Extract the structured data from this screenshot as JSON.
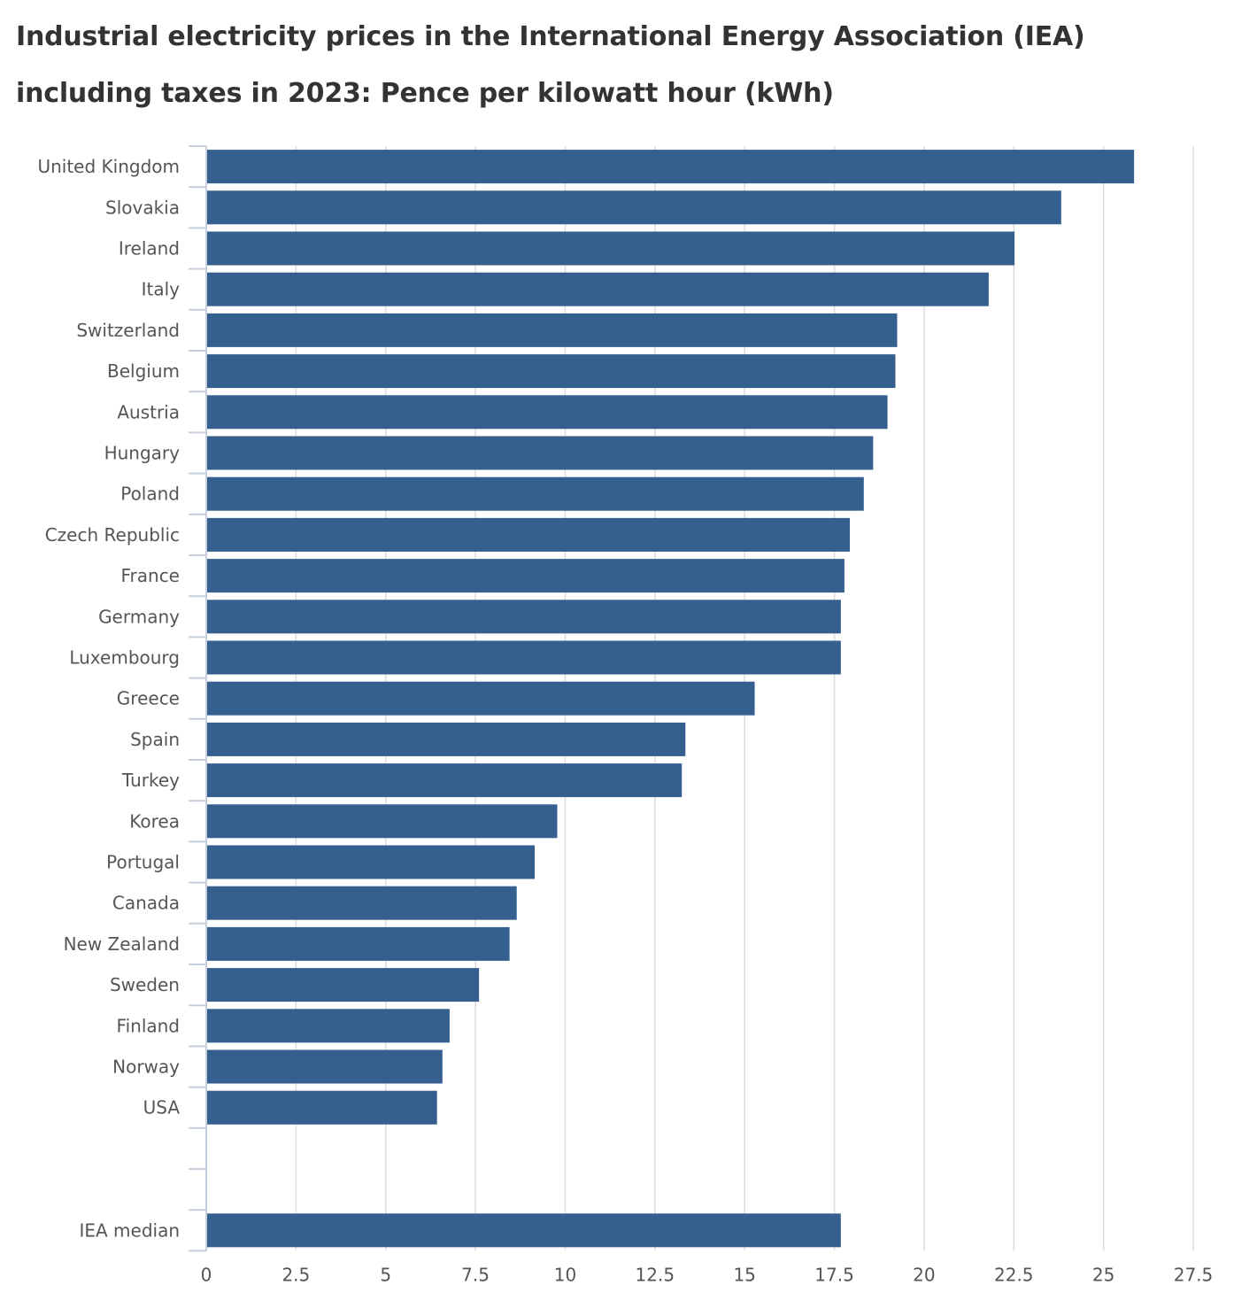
{
  "chart_data": {
    "type": "bar",
    "orientation": "horizontal",
    "title_lines": [
      "Industrial electricity prices in the International Energy Association (IEA)",
      "including taxes in 2023: Pence per kilowatt hour (kWh)"
    ],
    "categories": [
      "United Kingdom",
      "Slovakia",
      "Ireland",
      "Italy",
      "Switzerland",
      "Belgium",
      "Austria",
      "Hungary",
      "Poland",
      "Czech Republic",
      "France",
      "Germany",
      "Luxembourg",
      "Greece",
      "Spain",
      "Turkey",
      "Korea",
      "Portugal",
      "Canada",
      "New Zealand",
      "Sweden",
      "Finland",
      "Norway",
      "USA",
      "",
      "",
      "IEA median"
    ],
    "values": [
      25.85,
      23.82,
      22.52,
      21.8,
      19.25,
      19.2,
      18.98,
      18.58,
      18.32,
      17.93,
      17.78,
      17.68,
      17.68,
      15.28,
      13.35,
      13.25,
      9.78,
      9.15,
      8.65,
      8.45,
      7.6,
      6.78,
      6.58,
      6.43,
      null,
      null,
      17.68
    ],
    "series": [
      {
        "name": "Pence per kWh"
      }
    ],
    "xlabel": "",
    "ylabel": "",
    "xlim": [
      0,
      27.5
    ],
    "xticks": [
      0,
      2.5,
      5,
      7.5,
      10,
      12.5,
      15,
      17.5,
      20,
      22.5,
      25,
      27.5
    ],
    "xtick_labels": [
      "0",
      "2.5",
      "5",
      "7.5",
      "10",
      "12.5",
      "15",
      "17.5",
      "20",
      "22.5",
      "25",
      "27.5"
    ],
    "grid": true,
    "legend": "none",
    "colors": {
      "bar": "#355f8f",
      "grid": "#dddddd",
      "axis": "#c7cfdc",
      "text": "#555555",
      "title": "#333333"
    }
  }
}
